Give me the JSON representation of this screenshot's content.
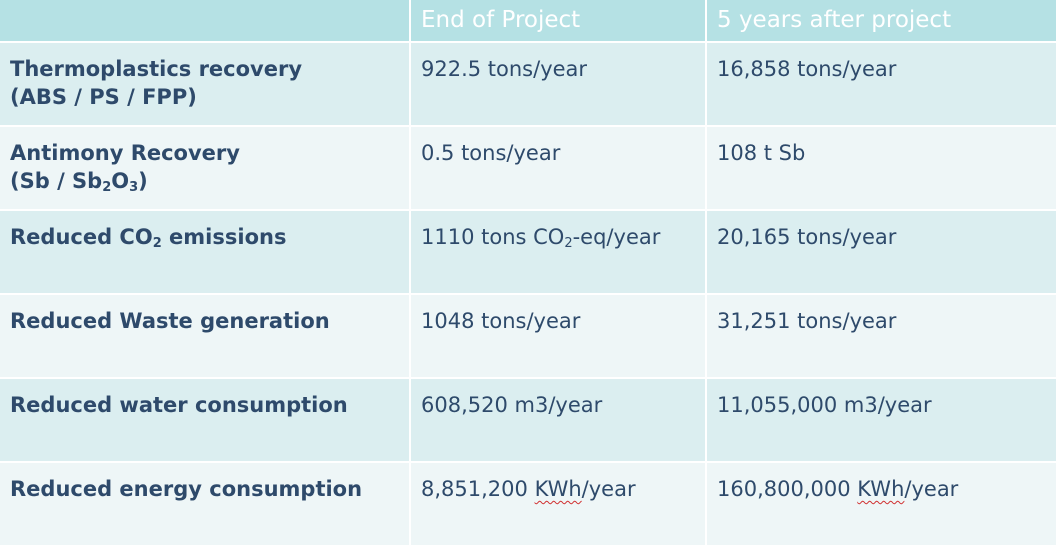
{
  "header": {
    "col1": "",
    "col2": "End of Project",
    "col3": "5 years after project"
  },
  "rows": [
    {
      "label_l1": "Thermoplastics recovery",
      "label_l2": "(ABS / PS / FPP)",
      "end": "922.5 tons/year",
      "after": "16,858 tons/year"
    },
    {
      "label_l1": "Antimony Recovery",
      "label_l2a": "(Sb / Sb",
      "label_sub1": "2",
      "label_l2b": "O",
      "label_sub2": "3",
      "label_l2c": ")",
      "end": "0.5 tons/year",
      "after": "108 t Sb"
    },
    {
      "label_a": "Reduced CO",
      "label_sub": "2",
      "label_b": " emissions",
      "end_a": "1110 tons CO",
      "end_sub": "2",
      "end_b": "-eq/year",
      "after": "20,165 tons/year"
    },
    {
      "label": "Reduced Waste generation",
      "end": "1048 tons/year",
      "after": "31,251 tons/year"
    },
    {
      "label": "Reduced water consumption",
      "end": "608,520 m3/year",
      "after": "11,055,000 m3/year"
    },
    {
      "label": "Reduced energy consumption",
      "end_num": "8,851,200 ",
      "end_unit": "KWh",
      "end_rest": "/year",
      "after_num": "160,800,000 ",
      "after_unit": "KWh",
      "after_rest": "/year"
    }
  ],
  "colors": {
    "header_bg": "#b5e1e4",
    "row_odd": "#dbeef0",
    "row_even": "#eef6f7",
    "text": "#2e4a6b"
  }
}
